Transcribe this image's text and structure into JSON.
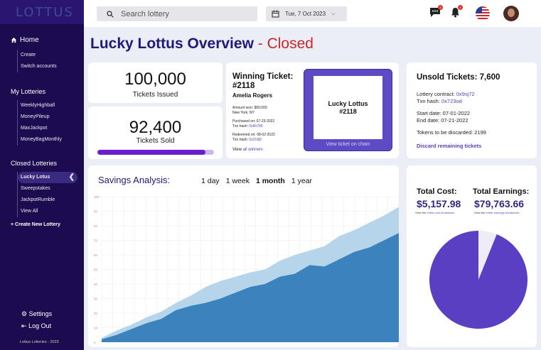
{
  "app": {
    "logo": "LOTTUS"
  },
  "sidebar": {
    "home": "Home",
    "home_items": [
      "Create",
      "Switch accounts"
    ],
    "my_lotteries_title": "My Lotteries",
    "my_lotteries": [
      "WeeklyHighball",
      "MoneyPileup",
      "MaxJackpot",
      "MoneyBagMonthly"
    ],
    "closed_title": "Closed Lotteries",
    "closed": [
      "Lucky Lotus",
      "Sweepstakes",
      "JackpotRumble",
      "View All"
    ],
    "create_new": "Create New Lottery",
    "settings": "Settings",
    "logout": "Log Out",
    "footer": "Lottus Lotteries - 2023"
  },
  "header": {
    "search_placeholder": "Search lottery",
    "date": "Tue, 7 Oct 2023",
    "chat_badge": "3",
    "bell_badge": "1"
  },
  "page": {
    "title": "Lucky Lottus Overview",
    "status": " - Closed"
  },
  "stats": {
    "issued_value": "100,000",
    "issued_label": "Tickets Issued",
    "sold_value": "92,400",
    "sold_label": "Tickets Sold",
    "sold_fraction": 0.924
  },
  "winning": {
    "title": "Winning Ticket: #2118",
    "name": "Amelia Rogers",
    "amount": "Amount won: $50,000",
    "location": "New York, NY",
    "purchased": "Purchased on: 07-23-2022",
    "txn_label": "Txn hash: ",
    "txn": "0x6h789",
    "redeemed": "Redeemed on: 08-02-2022",
    "txn2": "0x218j9",
    "view_prefix": "View ",
    "view_link": "all winners",
    "ticket_name": "Lucky Lottus",
    "ticket_num": "#2118",
    "view_chain": "View ticket on chain"
  },
  "unsold": {
    "title": "Unsold Tickets: 7,600",
    "contract_label": "Lottery contract: ",
    "contract": "0x9sj72",
    "txn_label": "Txn hash: ",
    "txn": "0x723od",
    "start": "Start date: 07-01-2022",
    "end": "End date: 07-21-2022",
    "discard_count": "Tokens to be discarded: 2199",
    "discard_link": "Discard remaining tickets"
  },
  "savings": {
    "title": "Savings Analysis:",
    "tabs": [
      "1 day",
      "1 week",
      "1 month",
      "1 year"
    ],
    "active_tab": "1 month"
  },
  "chart_data": {
    "type": "area",
    "ylim": [
      0,
      100
    ],
    "yticks": [
      "100",
      "90",
      "80",
      "70",
      "60",
      "50",
      "40",
      "30",
      "20",
      "10",
      "0"
    ],
    "x": [
      0,
      1,
      2,
      3,
      4,
      5,
      6,
      7,
      8,
      9,
      10,
      11,
      12,
      13,
      14,
      15,
      16,
      17,
      18,
      19,
      20
    ],
    "series": [
      {
        "values": [
          3,
          8,
          12,
          17,
          21,
          27,
          32,
          38,
          42,
          45,
          48,
          50,
          56,
          60,
          63,
          66,
          73,
          77,
          82,
          87,
          93
        ],
        "color": "#b6d5ea"
      },
      {
        "values": [
          2,
          5,
          9,
          13,
          16,
          22,
          25,
          27,
          30,
          34,
          38,
          40,
          45,
          47,
          53,
          52,
          57,
          62,
          65,
          70,
          75
        ],
        "color": "#3a83bd"
      }
    ]
  },
  "cost": {
    "total_cost_label": "Total Cost:",
    "total_cost": "$5,157.98",
    "cost_sub_prefix": "View the ",
    "cost_sub_link": "entire cost breakdown",
    "total_earn_label": "Total Earnings:",
    "total_earn": "$79,763.66",
    "earn_sub_link": "entire earnings breakdown",
    "pie": [
      {
        "label": "Cost",
        "value": 5157.98,
        "color": "#eeecf8"
      },
      {
        "label": "Earnings",
        "value": 79763.66,
        "color": "#5a3fc2"
      }
    ]
  },
  "colors": {
    "sidebar": "#1c0b4f",
    "accent": "#5a3fc2",
    "title": "#1f1a7a",
    "closed": "#c8262a"
  }
}
